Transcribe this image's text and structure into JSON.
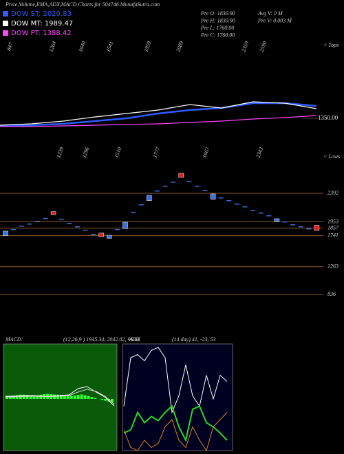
{
  "chart_data": [
    {
      "type": "line",
      "title": "Price,Volume,EMA,ADX,MACD Charts for 504746  MunafaSutra.com",
      "info": [
        "Pre O: 1830.90",
        "Pre H: 1830.90",
        "Pre L: 1760.00",
        "Pre C: 1760.00"
      ],
      "info2": [
        "Avg V: 0  M",
        "Pre V: 0.003 M"
      ],
      "tops": [
        847,
        1264,
        1640,
        1541,
        1859,
        2089,
        2359,
        2590
      ],
      "tops_label": "< Tops",
      "ylim": [
        1170,
        2470
      ],
      "yticks": [
        {
          "value": 1350,
          "label": "1350.00"
        }
      ],
      "series": [
        {
          "name": "DOW ST: 2020.83",
          "color": "#2f5bff",
          "values": [
            1240,
            1250,
            1270,
            1310,
            1350,
            1420,
            1470,
            1500,
            1570,
            1570,
            1530
          ]
        },
        {
          "name": "DOW MT: 1989.47",
          "color": "#ffffff",
          "values": [
            1250,
            1270,
            1310,
            1370,
            1420,
            1470,
            1550,
            1500,
            1590,
            1570,
            1490
          ]
        },
        {
          "name": "DOW PT: 1388.42",
          "color": "#ff44ff",
          "values": [
            1230,
            1230,
            1240,
            1250,
            1260,
            1270,
            1290,
            1310,
            1340,
            1360,
            1390
          ]
        }
      ]
    },
    {
      "type": "candlestick",
      "lows": [
        1239,
        1296,
        1510,
        1777,
        1667,
        2343
      ],
      "lows_label": "< Lows",
      "ylim": [
        392,
        2932
      ],
      "yticks": [
        2392,
        1953,
        1857,
        1741,
        1263,
        836
      ],
      "up_color": "#3b6fe0",
      "down_color": "#e02020",
      "open": [
        1740,
        1832,
        1885,
        1917,
        1959,
        2002,
        2110,
        1991,
        1927,
        1875,
        1822,
        1758,
        1780,
        1700,
        1832,
        1850,
        2097,
        2213,
        2280,
        2425,
        2499,
        2562,
        2700,
        2573,
        2499,
        2435,
        2300,
        2319,
        2277,
        2224,
        2181,
        2128,
        2086,
        2044,
        1960,
        1949,
        1906,
        1875,
        1843,
        1900
      ],
      "close": [
        1811,
        1842,
        1895,
        1927,
        1969,
        2012,
        2064,
        2001,
        1937,
        1885,
        1832,
        1768,
        1726,
        1747,
        1842,
        1948,
        2107,
        2223,
        2361,
        2435,
        2509,
        2572,
        2636,
        2583,
        2509,
        2445,
        2382,
        2329,
        2287,
        2234,
        2191,
        2138,
        2096,
        2054,
        2001,
        1959,
        1916,
        1885,
        1853,
        1821
      ]
    },
    {
      "type": "macd",
      "title": "MACD:",
      "subtitle": "(12,26,9 ) 1945.34, 2042.02, 96.68",
      "ylim": [
        -300,
        300
      ],
      "histogram": [
        10,
        15,
        20,
        22,
        25,
        25,
        24,
        22,
        20,
        22,
        25,
        28,
        30,
        28,
        26,
        25,
        24,
        22,
        20,
        18,
        20,
        24,
        26,
        22,
        18,
        12,
        6,
        0,
        -5,
        -10,
        -15,
        -20
      ],
      "series": [
        {
          "color": "#ffffff",
          "values": [
            16,
            16,
            20,
            20,
            16,
            16,
            20,
            24,
            60,
            72,
            40,
            10,
            -40
          ]
        },
        {
          "color": "#d0d0d0",
          "values": [
            12,
            12,
            14,
            16,
            14,
            14,
            16,
            20,
            40,
            56,
            44,
            16,
            -30
          ]
        }
      ]
    },
    {
      "type": "adx",
      "title": "ADX",
      "subtitle": "(14 day) 41, -23, 53",
      "ylim": [
        0,
        100
      ],
      "series": [
        {
          "color": "#ffffff",
          "values": [
            43,
            90,
            93,
            87,
            97,
            100,
            90,
            37,
            53,
            83,
            53,
            43,
            73,
            50,
            73,
            67
          ]
        },
        {
          "color": "#22dd22",
          "values": [
            17,
            20,
            37,
            27,
            33,
            29,
            37,
            43,
            23,
            10,
            40,
            43,
            27,
            23,
            17,
            10
          ]
        },
        {
          "color": "#e08020",
          "values": [
            20,
            3,
            0,
            10,
            3,
            7,
            23,
            30,
            10,
            3,
            23,
            10,
            0,
            23,
            30,
            37
          ]
        }
      ]
    }
  ]
}
